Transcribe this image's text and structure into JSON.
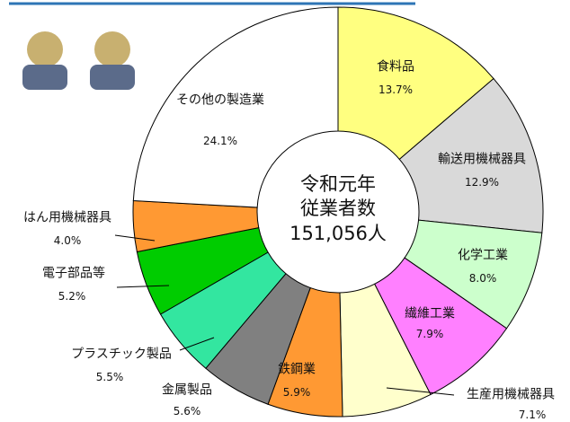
{
  "chart_data": {
    "type": "donut",
    "center_text": "令和元年\n従業者数\n151,056人",
    "categories": [
      "食料品",
      "輸送用機械器具",
      "化学工業",
      "繊維工業",
      "生産用機械器具",
      "鉄鋼業",
      "金属製品",
      "プラスチック製品",
      "電子部品等",
      "はん用機械器具",
      "その他の製造業"
    ],
    "values": [
      13.7,
      12.9,
      8.0,
      7.9,
      7.1,
      5.9,
      5.6,
      5.5,
      5.2,
      4.0,
      24.1
    ],
    "value_labels": [
      "13.7%",
      "12.9%",
      "8.0%",
      "7.9%",
      "7.1%",
      "5.9%",
      "5.6%",
      "5.5%",
      "5.2%",
      "4.0%",
      "24.1%"
    ],
    "colors": [
      "#ffff80",
      "#d9d9d9",
      "#ccffcc",
      "#ff80ff",
      "#ffffcc",
      "#ff9933",
      "#808080",
      "#33e6a0",
      "#00cc00",
      "#ff9933",
      "#ffffff"
    ]
  }
}
